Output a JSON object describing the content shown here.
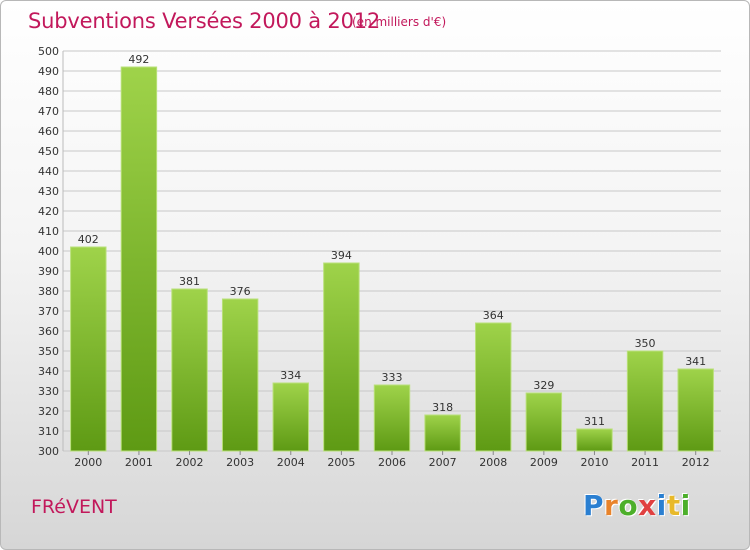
{
  "title": "Subventions Versées 2000 à 2012",
  "subtitle": "(en milliers d'€)",
  "city": "FRéVENT",
  "logo": {
    "letters": [
      {
        "ch": "P",
        "color": "#2a7fd1"
      },
      {
        "ch": "r",
        "color": "#e8832a"
      },
      {
        "ch": "o",
        "color": "#4caf2a"
      },
      {
        "ch": "x",
        "color": "#e04040"
      },
      {
        "ch": "i",
        "color": "#2a7fd1"
      },
      {
        "ch": "t",
        "color": "#e8b92a"
      },
      {
        "ch": "i",
        "color": "#4caf2a"
      }
    ]
  },
  "chart_data": {
    "type": "bar",
    "categories": [
      "2000",
      "2001",
      "2002",
      "2003",
      "2004",
      "2005",
      "2006",
      "2007",
      "2008",
      "2009",
      "2010",
      "2011",
      "2012"
    ],
    "values": [
      402,
      492,
      381,
      376,
      334,
      394,
      333,
      318,
      364,
      329,
      311,
      350,
      341
    ],
    "ylim": [
      300,
      500
    ],
    "ytick_step": 10,
    "grid": true,
    "bar_color": "#7ab828",
    "bar_color_light": "#9fd34a",
    "bar_color_dark": "#5e9a14"
  }
}
